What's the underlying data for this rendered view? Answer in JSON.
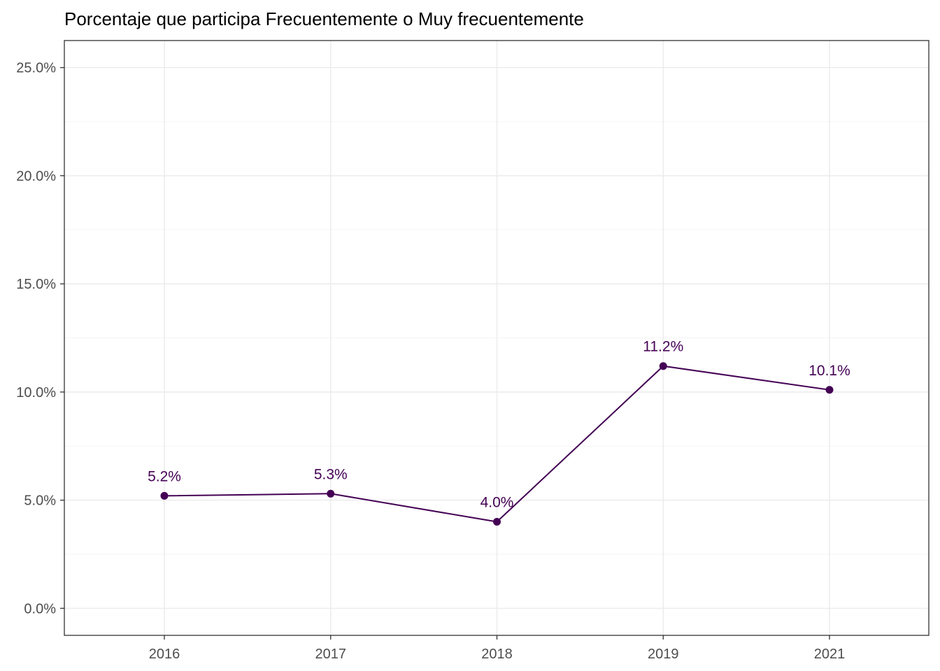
{
  "chart_data": {
    "type": "line",
    "title": "Porcentaje que participa Frecuentemente o Muy frecuentemente",
    "xlabel": "",
    "ylabel": "",
    "categories": [
      "2016",
      "2017",
      "2018",
      "2019",
      "2021"
    ],
    "series": [
      {
        "values": [
          5.2,
          5.3,
          4.0,
          11.2,
          10.1
        ],
        "labels": [
          "5.2%",
          "5.3%",
          "4.0%",
          "11.2%",
          "10.1%"
        ],
        "color": "#440154"
      }
    ],
    "y_ticks": [
      0,
      5,
      10,
      15,
      20,
      25
    ],
    "y_tick_labels": [
      "0.0%",
      "5.0%",
      "10.0%",
      "15.0%",
      "20.0%",
      "25.0%"
    ],
    "ylim": [
      -1.25,
      26.25
    ],
    "grid": true,
    "legend": "none"
  }
}
